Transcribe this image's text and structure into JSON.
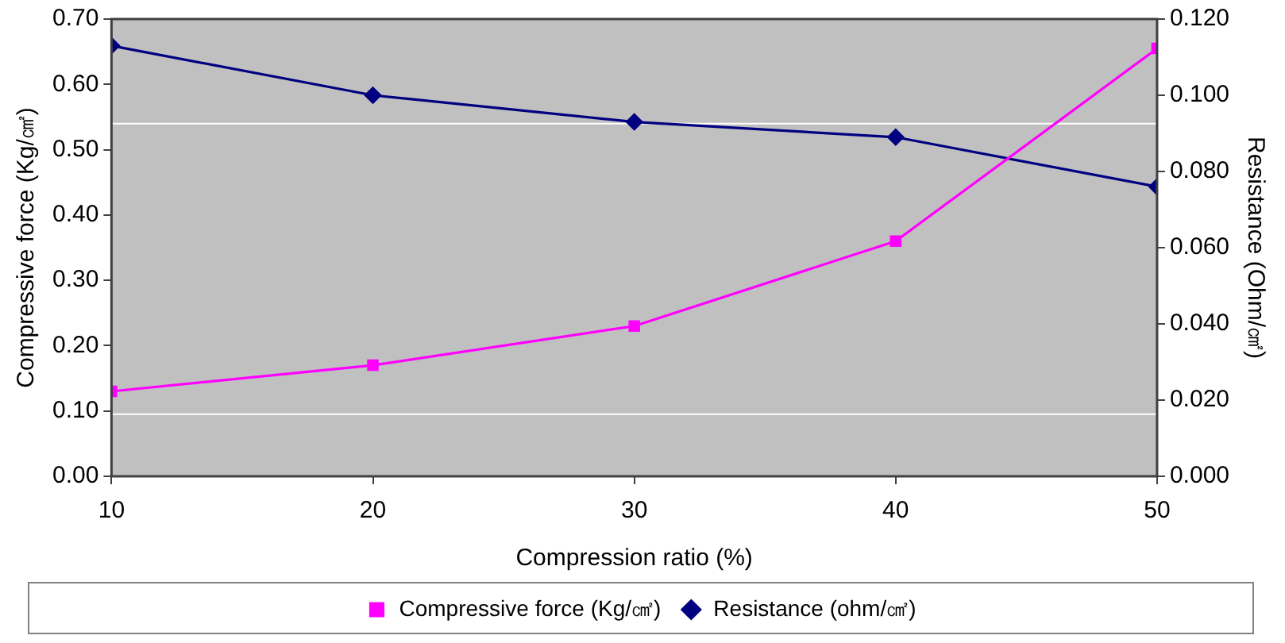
{
  "chart_data": {
    "type": "line",
    "xlabel": "Compression ratio (%)",
    "ylabel": "Compressive force (Kg/㎠)",
    "y2label": "Resistance (Ohm/㎠)",
    "x": [
      10,
      20,
      30,
      40,
      50
    ],
    "xlim": [
      10,
      50
    ],
    "xticks": [
      10,
      20,
      30,
      40,
      50
    ],
    "ylim": [
      0,
      0.7
    ],
    "yticks": [
      {
        "value": 0,
        "label": "0.00"
      },
      {
        "value": 0.1,
        "label": "0.10"
      },
      {
        "value": 0.2,
        "label": "0.20"
      },
      {
        "value": 0.3,
        "label": "0.30"
      },
      {
        "value": 0.4,
        "label": "0.40"
      },
      {
        "value": 0.5,
        "label": "0.50"
      },
      {
        "value": 0.6,
        "label": "0.60"
      },
      {
        "value": 0.7,
        "label": "0.70"
      }
    ],
    "y2lim": [
      0,
      0.12
    ],
    "y2ticks": [
      {
        "value": 0,
        "label": "0.000"
      },
      {
        "value": 0.02,
        "label": "0.020"
      },
      {
        "value": 0.04,
        "label": "0.040"
      },
      {
        "value": 0.06,
        "label": "0.060"
      },
      {
        "value": 0.08,
        "label": "0.080"
      },
      {
        "value": 0.1,
        "label": "0.100"
      },
      {
        "value": 0.12,
        "label": "0.120"
      }
    ],
    "series": [
      {
        "name": "Compressive force (Kg/㎠)",
        "color": "#ff00ff",
        "marker": "square",
        "values": [
          0.13,
          0.17,
          0.23,
          0.36,
          0.655
        ]
      },
      {
        "name": "Resistance (ohm/㎠)",
        "color": "#000080",
        "marker": "diamond",
        "axis": "y2",
        "values": [
          0.113,
          0.1,
          0.093,
          0.089,
          0.076
        ]
      }
    ],
    "ref_lines": [
      {
        "axis": "y",
        "value": 0.54,
        "color": "#ffffff"
      },
      {
        "axis": "y",
        "value": 0.095,
        "color": "#ffffff"
      }
    ],
    "grid": false,
    "legend": "bottom",
    "line_style": "solid"
  }
}
